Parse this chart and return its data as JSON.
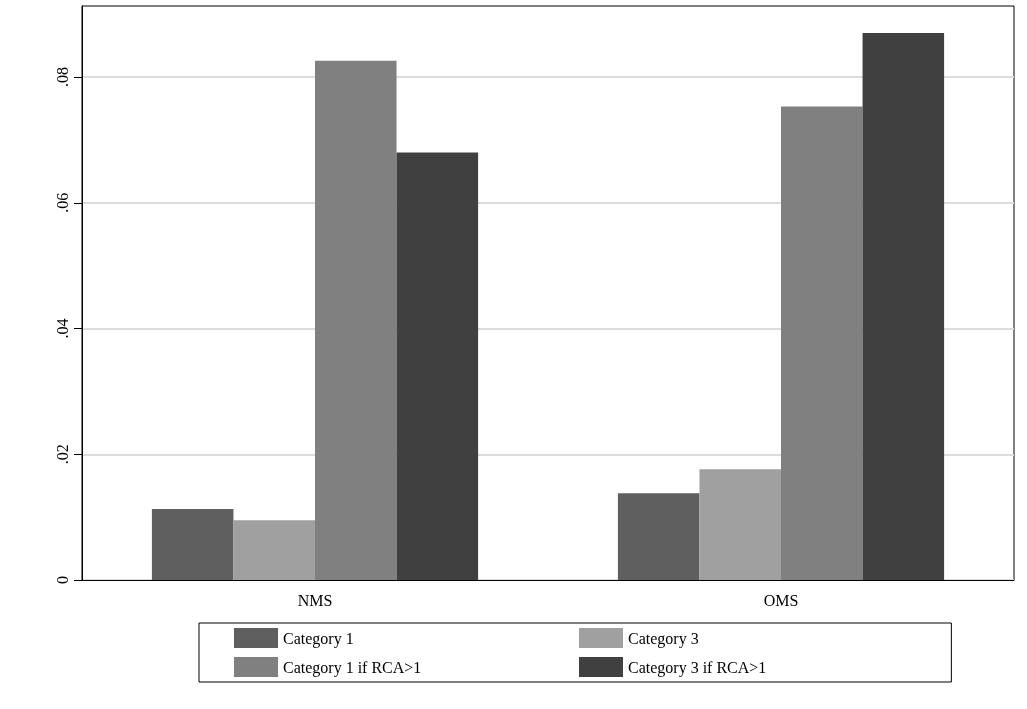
{
  "chart_data": {
    "type": "bar",
    "categories": [
      "NMS",
      "OMS"
    ],
    "series": [
      {
        "name": "Category 1",
        "color": "#5f5f5f",
        "values": [
          0.0113,
          0.0138
        ]
      },
      {
        "name": "Category 3",
        "color": "#a0a0a0",
        "values": [
          0.0095,
          0.0176
        ]
      },
      {
        "name": "Category 1 if RCA>1",
        "color": "#808080",
        "values": [
          0.0826,
          0.0753
        ]
      },
      {
        "name": "Category 3 if RCA>1",
        "color": "#404040",
        "values": [
          0.068,
          0.087
        ]
      }
    ],
    "ylim": [
      0,
      0.0913
    ],
    "yticks": [
      {
        "value": 0,
        "label": "0"
      },
      {
        "value": 0.02,
        "label": ".02"
      },
      {
        "value": 0.04,
        "label": ".04"
      },
      {
        "value": 0.06,
        "label": ".06"
      },
      {
        "value": 0.08,
        "label": ".08"
      }
    ],
    "grid": "y",
    "legend": "bottom"
  }
}
